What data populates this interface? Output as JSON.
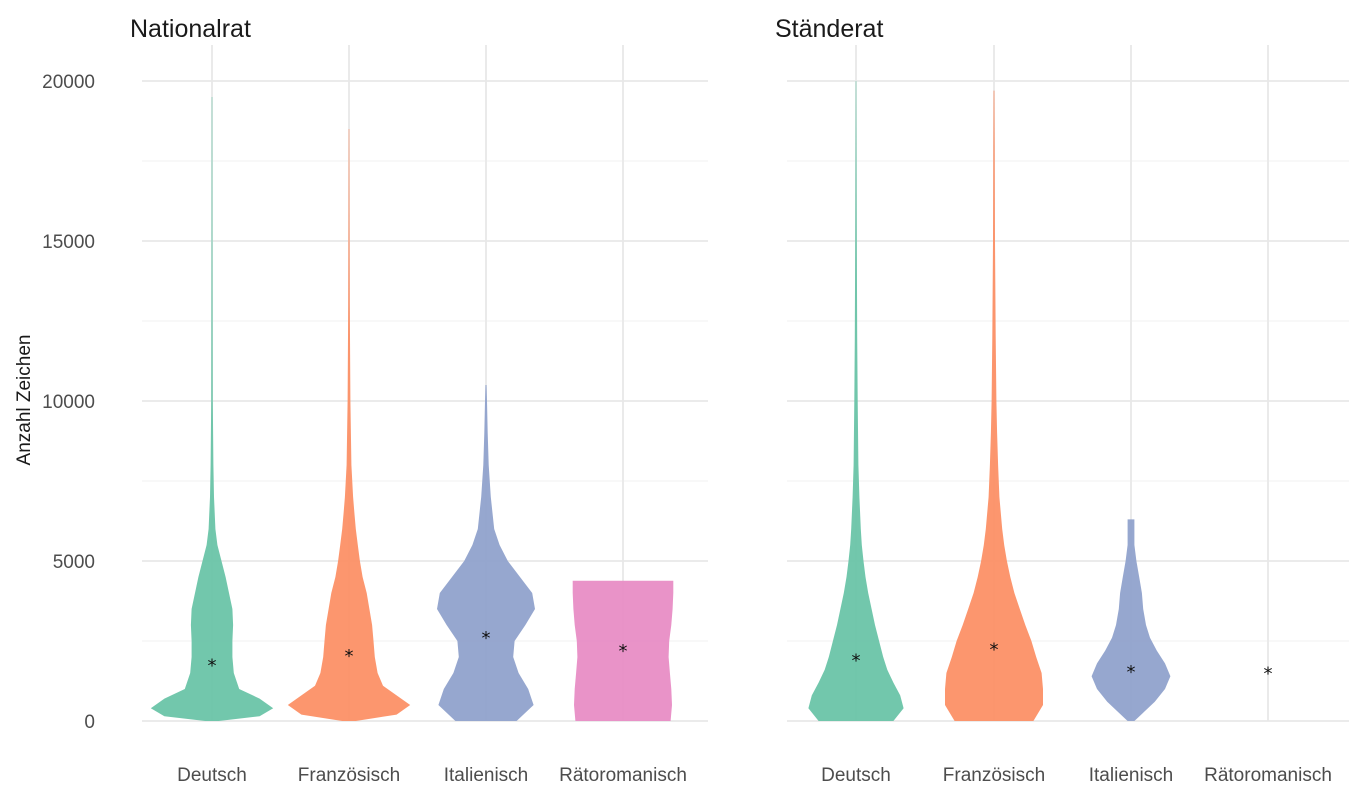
{
  "chart_data": {
    "type": "violin",
    "ylabel": "Anzahl Zeichen",
    "ylim": [
      0,
      20000
    ],
    "yticks": [
      0,
      5000,
      10000,
      15000,
      20000
    ],
    "grid": true,
    "categories": [
      "Deutsch",
      "Französisch",
      "Italienisch",
      "Rätoromanisch"
    ],
    "colors": {
      "Deutsch": "#66c2a5",
      "Französisch": "#fc8d62",
      "Italienisch": "#8da0cb",
      "Rätoromanisch": "#e78ac3"
    },
    "panels": [
      {
        "title": "Nationalrat",
        "violins": [
          {
            "category": "Deutsch",
            "median": 1800,
            "profile": [
              [
                0,
                0.1
              ],
              [
                150,
                0.7
              ],
              [
                400,
                0.9
              ],
              [
                700,
                0.7
              ],
              [
                1000,
                0.4
              ],
              [
                1500,
                0.32
              ],
              [
                2000,
                0.3
              ],
              [
                2500,
                0.3
              ],
              [
                3000,
                0.31
              ],
              [
                3500,
                0.3
              ],
              [
                4000,
                0.25
              ],
              [
                4500,
                0.2
              ],
              [
                5000,
                0.14
              ],
              [
                5500,
                0.08
              ],
              [
                6000,
                0.05
              ],
              [
                7000,
                0.03
              ],
              [
                8000,
                0.02
              ],
              [
                10000,
                0.012
              ],
              [
                15000,
                0.008
              ],
              [
                19500,
                0.005
              ]
            ]
          },
          {
            "category": "Französisch",
            "median": 2100,
            "profile": [
              [
                0,
                0.1
              ],
              [
                200,
                0.7
              ],
              [
                500,
                0.9
              ],
              [
                800,
                0.7
              ],
              [
                1100,
                0.5
              ],
              [
                1500,
                0.42
              ],
              [
                2000,
                0.38
              ],
              [
                2500,
                0.36
              ],
              [
                3000,
                0.34
              ],
              [
                3500,
                0.3
              ],
              [
                4000,
                0.26
              ],
              [
                4500,
                0.2
              ],
              [
                5000,
                0.16
              ],
              [
                5500,
                0.13
              ],
              [
                6000,
                0.1
              ],
              [
                6500,
                0.08
              ],
              [
                7000,
                0.06
              ],
              [
                8000,
                0.035
              ],
              [
                10000,
                0.02
              ],
              [
                13000,
                0.012
              ],
              [
                16000,
                0.008
              ],
              [
                18500,
                0.005
              ]
            ]
          },
          {
            "category": "Italienisch",
            "median": 2650,
            "profile": [
              [
                0,
                0.45
              ],
              [
                500,
                0.7
              ],
              [
                1000,
                0.62
              ],
              [
                1500,
                0.48
              ],
              [
                2000,
                0.4
              ],
              [
                2500,
                0.42
              ],
              [
                3000,
                0.58
              ],
              [
                3500,
                0.72
              ],
              [
                4000,
                0.68
              ],
              [
                4500,
                0.5
              ],
              [
                5000,
                0.32
              ],
              [
                5500,
                0.2
              ],
              [
                6000,
                0.12
              ],
              [
                7000,
                0.07
              ],
              [
                8000,
                0.04
              ],
              [
                9000,
                0.025
              ],
              [
                10000,
                0.015
              ],
              [
                10500,
                0.008
              ]
            ]
          },
          {
            "category": "Rätoromanisch",
            "median": 2250,
            "profile": [
              [
                0,
                0.7
              ],
              [
                500,
                0.72
              ],
              [
                1000,
                0.71
              ],
              [
                1500,
                0.69
              ],
              [
                2000,
                0.67
              ],
              [
                2500,
                0.68
              ],
              [
                3000,
                0.71
              ],
              [
                3500,
                0.73
              ],
              [
                4000,
                0.74
              ],
              [
                4380,
                0.74
              ]
            ]
          }
        ]
      },
      {
        "title": "Ständerat",
        "violins": [
          {
            "category": "Deutsch",
            "median": 1950,
            "profile": [
              [
                0,
                0.55
              ],
              [
                400,
                0.7
              ],
              [
                800,
                0.65
              ],
              [
                1200,
                0.55
              ],
              [
                1600,
                0.46
              ],
              [
                2000,
                0.4
              ],
              [
                2500,
                0.34
              ],
              [
                3000,
                0.28
              ],
              [
                3500,
                0.23
              ],
              [
                4000,
                0.18
              ],
              [
                4500,
                0.14
              ],
              [
                5000,
                0.11
              ],
              [
                5500,
                0.085
              ],
              [
                6000,
                0.07
              ],
              [
                7000,
                0.05
              ],
              [
                8000,
                0.035
              ],
              [
                10000,
                0.025
              ],
              [
                12000,
                0.018
              ],
              [
                15000,
                0.012
              ],
              [
                18000,
                0.008
              ],
              [
                20000,
                0.005
              ]
            ]
          },
          {
            "category": "Französisch",
            "median": 2300,
            "profile": [
              [
                0,
                0.58
              ],
              [
                500,
                0.72
              ],
              [
                1000,
                0.72
              ],
              [
                1500,
                0.7
              ],
              [
                2000,
                0.62
              ],
              [
                2500,
                0.55
              ],
              [
                3000,
                0.46
              ],
              [
                3500,
                0.38
              ],
              [
                4000,
                0.3
              ],
              [
                4500,
                0.24
              ],
              [
                5000,
                0.19
              ],
              [
                5500,
                0.15
              ],
              [
                6000,
                0.12
              ],
              [
                7000,
                0.08
              ],
              [
                8000,
                0.06
              ],
              [
                9000,
                0.045
              ],
              [
                10000,
                0.035
              ],
              [
                12000,
                0.025
              ],
              [
                15000,
                0.015
              ],
              [
                18000,
                0.01
              ],
              [
                19700,
                0.006
              ]
            ]
          },
          {
            "category": "Italienisch",
            "median": 1600,
            "profile": [
              [
                0,
                0.05
              ],
              [
                300,
                0.2
              ],
              [
                600,
                0.35
              ],
              [
                1000,
                0.5
              ],
              [
                1400,
                0.58
              ],
              [
                1800,
                0.5
              ],
              [
                2200,
                0.38
              ],
              [
                2600,
                0.28
              ],
              [
                3000,
                0.22
              ],
              [
                3500,
                0.18
              ],
              [
                4000,
                0.16
              ],
              [
                4500,
                0.12
              ],
              [
                5000,
                0.08
              ],
              [
                5500,
                0.05
              ],
              [
                6000,
                0.05
              ],
              [
                6300,
                0.05
              ]
            ]
          },
          {
            "category": "Rätoromanisch",
            "median": 1550,
            "profile": []
          }
        ]
      }
    ]
  }
}
